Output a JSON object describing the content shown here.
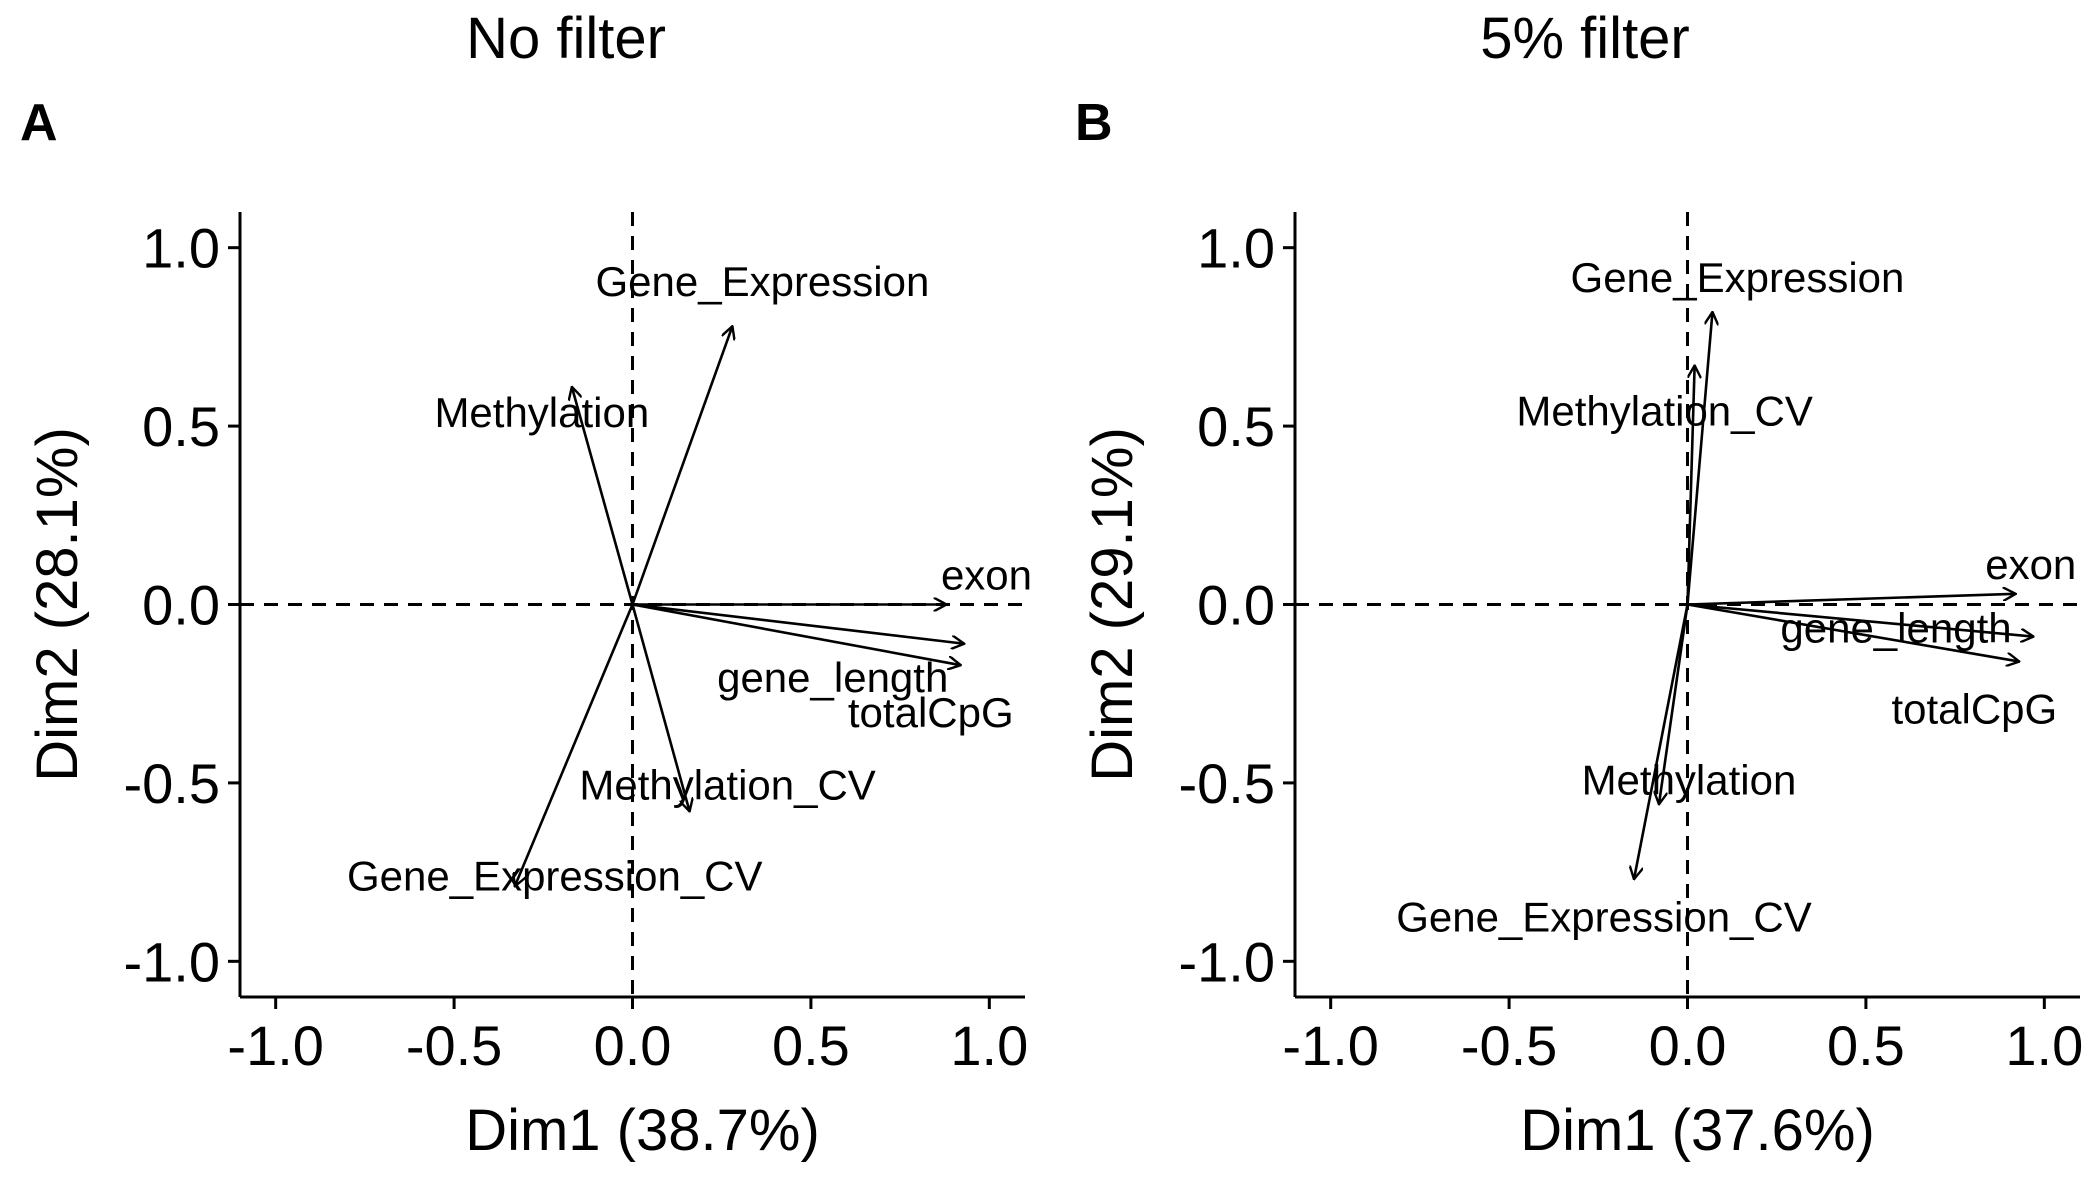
{
  "chart_data": [
    {
      "type": "scatter",
      "panel": "A",
      "title": "No filter",
      "xlabel": "Dim1 (38.7%)",
      "ylabel": "Dim2 (28.1%)",
      "xlim": [
        -1.1,
        1.1
      ],
      "ylim": [
        -1.1,
        1.1
      ],
      "xticks": [
        -1.0,
        -0.5,
        0.0,
        0.5,
        1.0
      ],
      "yticks": [
        -1.0,
        -0.5,
        0.0,
        0.5,
        1.0
      ],
      "xtick_labels": [
        "-1.0",
        "-0.5",
        "0.0",
        "0.5",
        "1.0"
      ],
      "ytick_labels": [
        "-1.0",
        "-0.5",
        "0.0",
        "0.5",
        "1.0"
      ],
      "grid": false,
      "reference_lines": [
        0,
        0
      ],
      "vectors": [
        {
          "name": "Gene_Expression",
          "x": 0.28,
          "y": 0.78
        },
        {
          "name": "Methylation",
          "x": -0.17,
          "y": 0.61
        },
        {
          "name": "exon",
          "x": 0.88,
          "y": 0.0
        },
        {
          "name": "gene_length",
          "x": 0.93,
          "y": -0.11
        },
        {
          "name": "totalCpG",
          "x": 0.92,
          "y": -0.17
        },
        {
          "name": "Methylation_CV",
          "x": 0.16,
          "y": -0.58
        },
        {
          "name": "Gene_Expression_CV",
          "x": -0.33,
          "y": -0.79
        }
      ]
    },
    {
      "type": "scatter",
      "panel": "B",
      "title": "5% filter",
      "xlabel": "Dim1 (37.6%)",
      "ylabel": "Dim2 (29.1%)",
      "xlim": [
        -1.1,
        1.1
      ],
      "ylim": [
        -1.1,
        1.1
      ],
      "xticks": [
        -1.0,
        -0.5,
        0.0,
        0.5,
        1.0
      ],
      "yticks": [
        -1.0,
        -0.5,
        0.0,
        0.5,
        1.0
      ],
      "xtick_labels": [
        "-1.0",
        "-0.5",
        "0.0",
        "0.5",
        "1.0"
      ],
      "ytick_labels": [
        "-1.0",
        "-0.5",
        "0.0",
        "0.5",
        "1.0"
      ],
      "grid": false,
      "reference_lines": [
        0,
        0
      ],
      "vectors": [
        {
          "name": "Gene_Expression",
          "x": 0.07,
          "y": 0.82
        },
        {
          "name": "Methylation_CV",
          "x": 0.02,
          "y": 0.67
        },
        {
          "name": "exon",
          "x": 0.92,
          "y": 0.03
        },
        {
          "name": "gene_length",
          "x": 0.97,
          "y": -0.09
        },
        {
          "name": "totalCpG",
          "x": 0.93,
          "y": -0.16
        },
        {
          "name": "Methylation",
          "x": -0.08,
          "y": -0.56
        },
        {
          "name": "Gene_Expression_CV",
          "x": -0.15,
          "y": -0.77
        }
      ]
    }
  ]
}
